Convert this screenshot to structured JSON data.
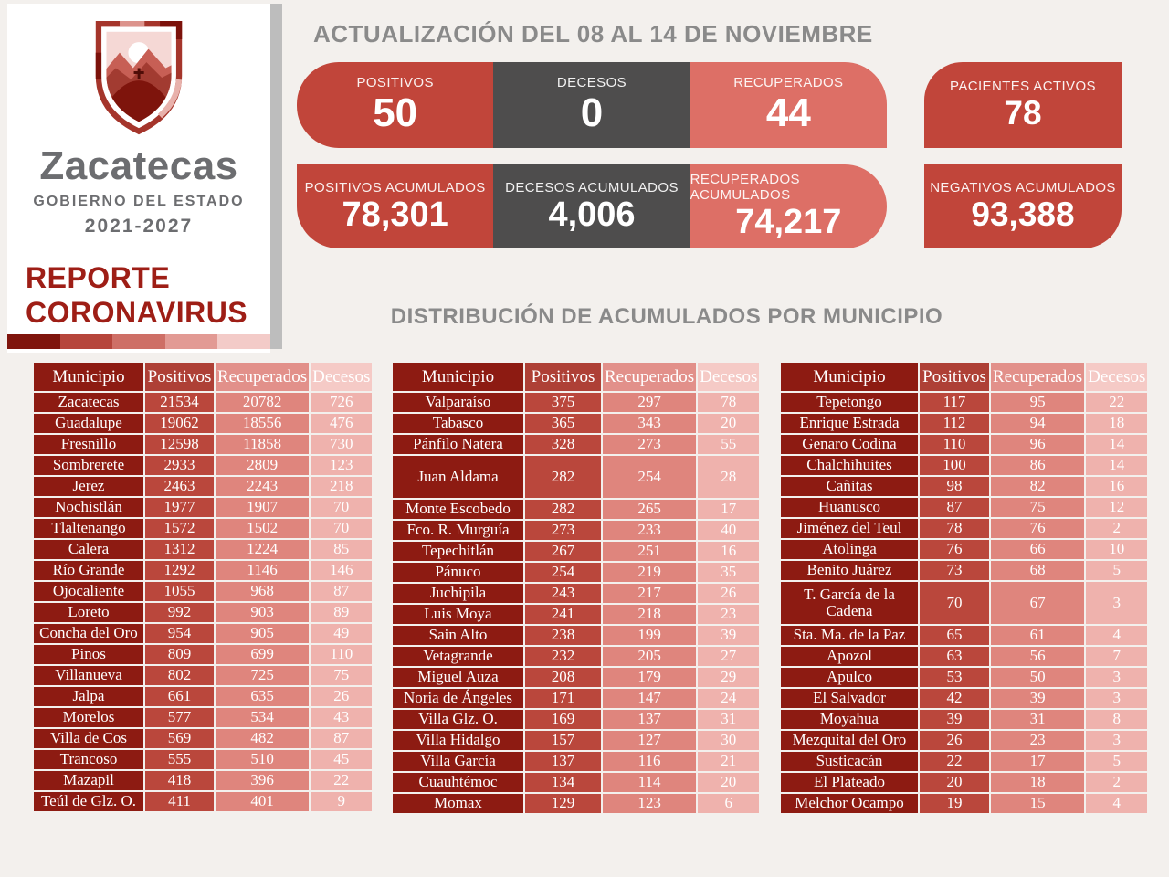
{
  "brand": {
    "state_name": "Zacatecas",
    "government": "GOBIERNO DEL ESTADO",
    "period": "2021-2027",
    "report_line1": "REPORTE",
    "report_line2": "CORONAVIRUS"
  },
  "header": {
    "title": "ACTUALIZACIÓN DEL 08 AL 14 DE NOVIEMBRE"
  },
  "section_title": "DISTRIBUCIÓN DE ACUMULADOS POR MUNICIPIO",
  "stats": {
    "weekly": [
      {
        "label": "POSITIVOS",
        "value": "50"
      },
      {
        "label": "DECESOS",
        "value": "0"
      },
      {
        "label": "RECUPERADOS",
        "value": "44"
      }
    ],
    "accumulated": [
      {
        "label": "POSITIVOS  ACUMULADOS",
        "value": "78,301"
      },
      {
        "label": "DECESOS  ACUMULADOS",
        "value": "4,006"
      },
      {
        "label": "RECUPERADOS ACUMULADOS",
        "value": "74,217"
      }
    ],
    "side": [
      {
        "label": "PACIENTES ACTIVOS",
        "value": "78"
      },
      {
        "label": "NEGATIVOS ACUMULADOS",
        "value": "93,388"
      }
    ]
  },
  "table_headers": [
    "Municipio",
    "Positivos",
    "Recuperados",
    "Decesos"
  ],
  "colors": {
    "accent_red": "#c1453a",
    "dark_gray": "#4e4d4d",
    "light_red": "#dd6f66",
    "table_municipio": "#8d1b12",
    "table_positivos": "#ba473c",
    "table_recuperados": "#df857d",
    "table_decesos": "#efb2ad",
    "background": "#f3f0ed",
    "title_gray": "#8a8a8a",
    "brand_maroon": "#9e1e16",
    "footer_gradient": [
      "#7f150d",
      "#b6453b",
      "#ce6f66",
      "#e29a94",
      "#f3cbc8"
    ]
  },
  "tables": [
    {
      "tall_rows": [],
      "rows": [
        [
          "Zacatecas",
          21534,
          20782,
          726
        ],
        [
          "Guadalupe",
          19062,
          18556,
          476
        ],
        [
          "Fresnillo",
          12598,
          11858,
          730
        ],
        [
          "Sombrerete",
          2933,
          2809,
          123
        ],
        [
          "Jerez",
          2463,
          2243,
          218
        ],
        [
          "Nochistlán",
          1977,
          1907,
          70
        ],
        [
          "Tlaltenango",
          1572,
          1502,
          70
        ],
        [
          "Calera",
          1312,
          1224,
          85
        ],
        [
          "Río Grande",
          1292,
          1146,
          146
        ],
        [
          "Ojocaliente",
          1055,
          968,
          87
        ],
        [
          "Loreto",
          992,
          903,
          89
        ],
        [
          "Concha del Oro",
          954,
          905,
          49
        ],
        [
          "Pinos",
          809,
          699,
          110
        ],
        [
          "Villanueva",
          802,
          725,
          75
        ],
        [
          "Jalpa",
          661,
          635,
          26
        ],
        [
          "Morelos",
          577,
          534,
          43
        ],
        [
          "Villa de Cos",
          569,
          482,
          87
        ],
        [
          "Trancoso",
          555,
          510,
          45
        ],
        [
          "Mazapil",
          418,
          396,
          22
        ],
        [
          "Teúl de Glz. O.",
          411,
          401,
          9
        ]
      ]
    },
    {
      "tall_rows": [
        3
      ],
      "rows": [
        [
          "Valparaíso",
          375,
          297,
          78
        ],
        [
          "Tabasco",
          365,
          343,
          20
        ],
        [
          "Pánfilo Natera",
          328,
          273,
          55
        ],
        [
          "Juan Aldama",
          282,
          254,
          28
        ],
        [
          "Monte Escobedo",
          282,
          265,
          17
        ],
        [
          "Fco. R. Murguía",
          273,
          233,
          40
        ],
        [
          "Tepechitlán",
          267,
          251,
          16
        ],
        [
          "Pánuco",
          254,
          219,
          35
        ],
        [
          "Juchipila",
          243,
          217,
          26
        ],
        [
          "Luis Moya",
          241,
          218,
          23
        ],
        [
          "Sain Alto",
          238,
          199,
          39
        ],
        [
          "Vetagrande",
          232,
          205,
          27
        ],
        [
          "Miguel Auza",
          208,
          179,
          29
        ],
        [
          "Noria de Ángeles",
          171,
          147,
          24
        ],
        [
          "Villa Glz. O.",
          169,
          137,
          31
        ],
        [
          "Villa Hidalgo",
          157,
          127,
          30
        ],
        [
          "Villa García",
          137,
          116,
          21
        ],
        [
          "Cuauhtémoc",
          134,
          114,
          20
        ],
        [
          "Momax",
          129,
          123,
          6
        ]
      ]
    },
    {
      "tall_rows": [
        9
      ],
      "rows": [
        [
          "Tepetongo",
          117,
          95,
          22
        ],
        [
          "Enrique Estrada",
          112,
          94,
          18
        ],
        [
          "Genaro Codina",
          110,
          96,
          14
        ],
        [
          "Chalchihuites",
          100,
          86,
          14
        ],
        [
          "Cañitas",
          98,
          82,
          16
        ],
        [
          "Huanusco",
          87,
          75,
          12
        ],
        [
          "Jiménez del Teul",
          78,
          76,
          2
        ],
        [
          "Atolinga",
          76,
          66,
          10
        ],
        [
          "Benito Juárez",
          73,
          68,
          5
        ],
        [
          "T. García de la Cadena",
          70,
          67,
          3
        ],
        [
          "Sta. Ma. de la Paz",
          65,
          61,
          4
        ],
        [
          "Apozol",
          63,
          56,
          7
        ],
        [
          "Apulco",
          53,
          50,
          3
        ],
        [
          "El Salvador",
          42,
          39,
          3
        ],
        [
          "Moyahua",
          39,
          31,
          8
        ],
        [
          "Mezquital del Oro",
          26,
          23,
          3
        ],
        [
          "Susticacán",
          22,
          17,
          5
        ],
        [
          "El Plateado",
          20,
          18,
          2
        ],
        [
          "Melchor Ocampo",
          19,
          15,
          4
        ]
      ]
    }
  ]
}
